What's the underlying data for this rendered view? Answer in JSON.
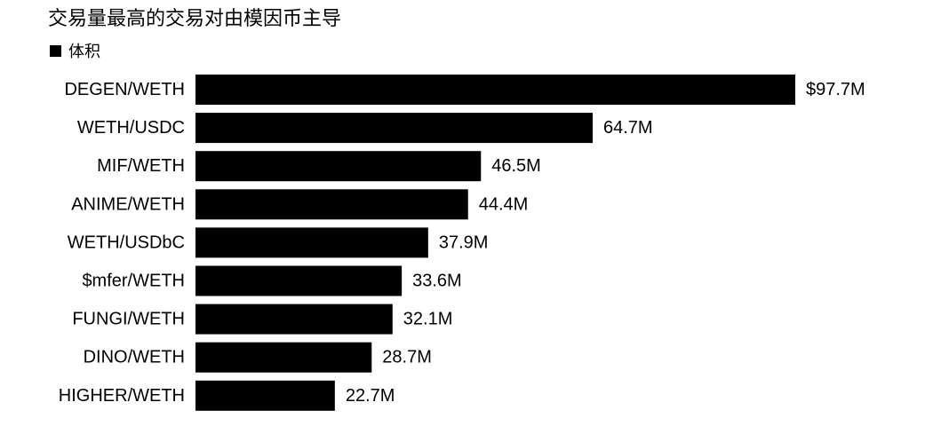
{
  "chart_data": {
    "type": "bar",
    "orientation": "horizontal",
    "title": "交易量最高的交易对由模因币主导",
    "legend": [
      "体积"
    ],
    "legend_placement": "top-left",
    "grid": false,
    "categories": [
      "DEGEN/WETH",
      "WETH/USDC",
      "MIF/WETH",
      "ANIME/WETH",
      "WETH/USDbC",
      "$mfer/WETH",
      "FUNGI/WETH",
      "DINO/WETH",
      "HIGHER/WETH"
    ],
    "series": [
      {
        "name": "体积",
        "values": [
          97.7,
          64.7,
          46.5,
          44.4,
          37.9,
          33.6,
          32.1,
          28.7,
          22.7
        ],
        "labels": [
          "$97.7M",
          "64.7M",
          "46.5M",
          "44.4M",
          "37.9M",
          "33.6M",
          "32.1M",
          "28.7M",
          "22.7M"
        ]
      }
    ],
    "xlim": [
      0,
      97.7
    ],
    "unit": "M USD",
    "bar_color": "#000000"
  }
}
